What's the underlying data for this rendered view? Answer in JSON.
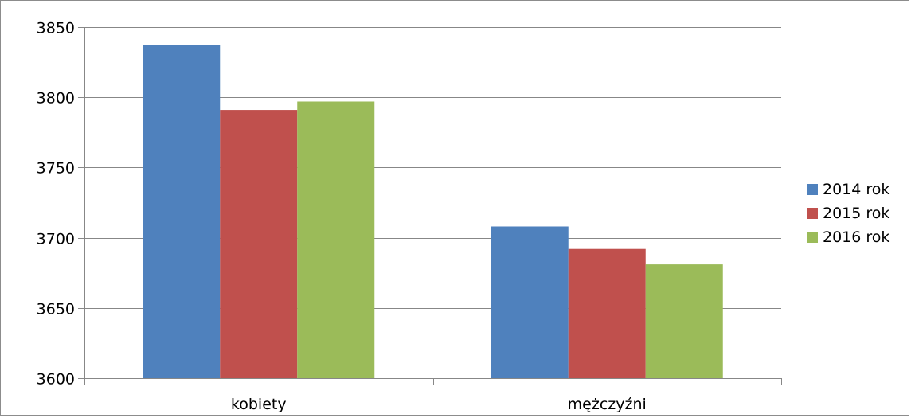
{
  "chart_data": {
    "type": "bar",
    "categories": [
      "kobiety",
      "mężczyźni"
    ],
    "series": [
      {
        "name": "2014 rok",
        "color": "#4f81bd",
        "values": [
          3837,
          3708
        ]
      },
      {
        "name": "2015 rok",
        "color": "#c0504d",
        "values": [
          3791,
          3692
        ]
      },
      {
        "name": "2016 rok",
        "color": "#9bbb59",
        "values": [
          3797,
          3681
        ]
      }
    ],
    "title": "",
    "xlabel": "",
    "ylabel": "",
    "ylim": [
      3600,
      3850
    ],
    "yticks": [
      3600,
      3650,
      3700,
      3750,
      3800,
      3850
    ],
    "grid": "horizontal",
    "legend": "right"
  }
}
